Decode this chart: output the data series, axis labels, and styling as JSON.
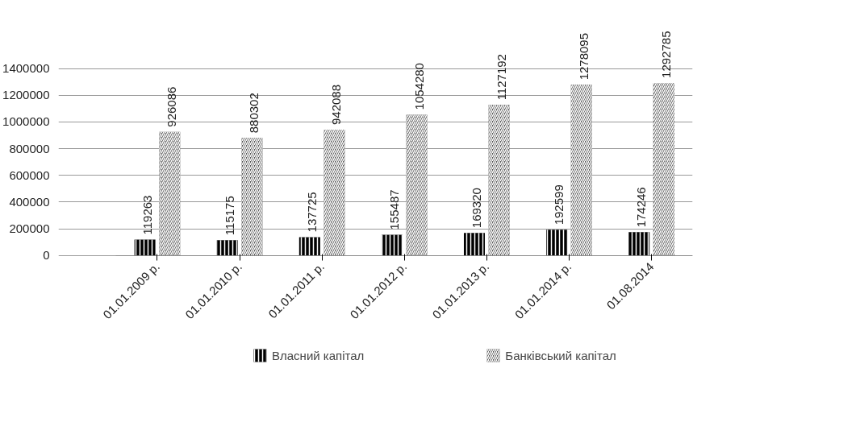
{
  "chart_data": {
    "type": "bar",
    "categories": [
      "01.01.2009 р.",
      "01.01.2010 р.",
      "01.01.2011 р.",
      "01.01.2012 р.",
      "01.01.2013 р.",
      "01.01.2014 р.",
      "01.08.2014"
    ],
    "series": [
      {
        "name": "Власний капітал",
        "color": "#000000",
        "values": [
          119263,
          115175,
          137725,
          155487,
          169320,
          192599,
          174246
        ]
      },
      {
        "name": "Банківський капітал",
        "color": "#555555",
        "values": [
          926086,
          880302,
          942088,
          1054280,
          1127192,
          1278095,
          1292785
        ]
      }
    ],
    "ylim": [
      0,
      1400000
    ],
    "yticks": [
      0,
      200000,
      400000,
      600000,
      800000,
      1000000,
      1200000,
      1400000
    ],
    "grid": "y",
    "legend": "bottom",
    "data_labels": true
  }
}
